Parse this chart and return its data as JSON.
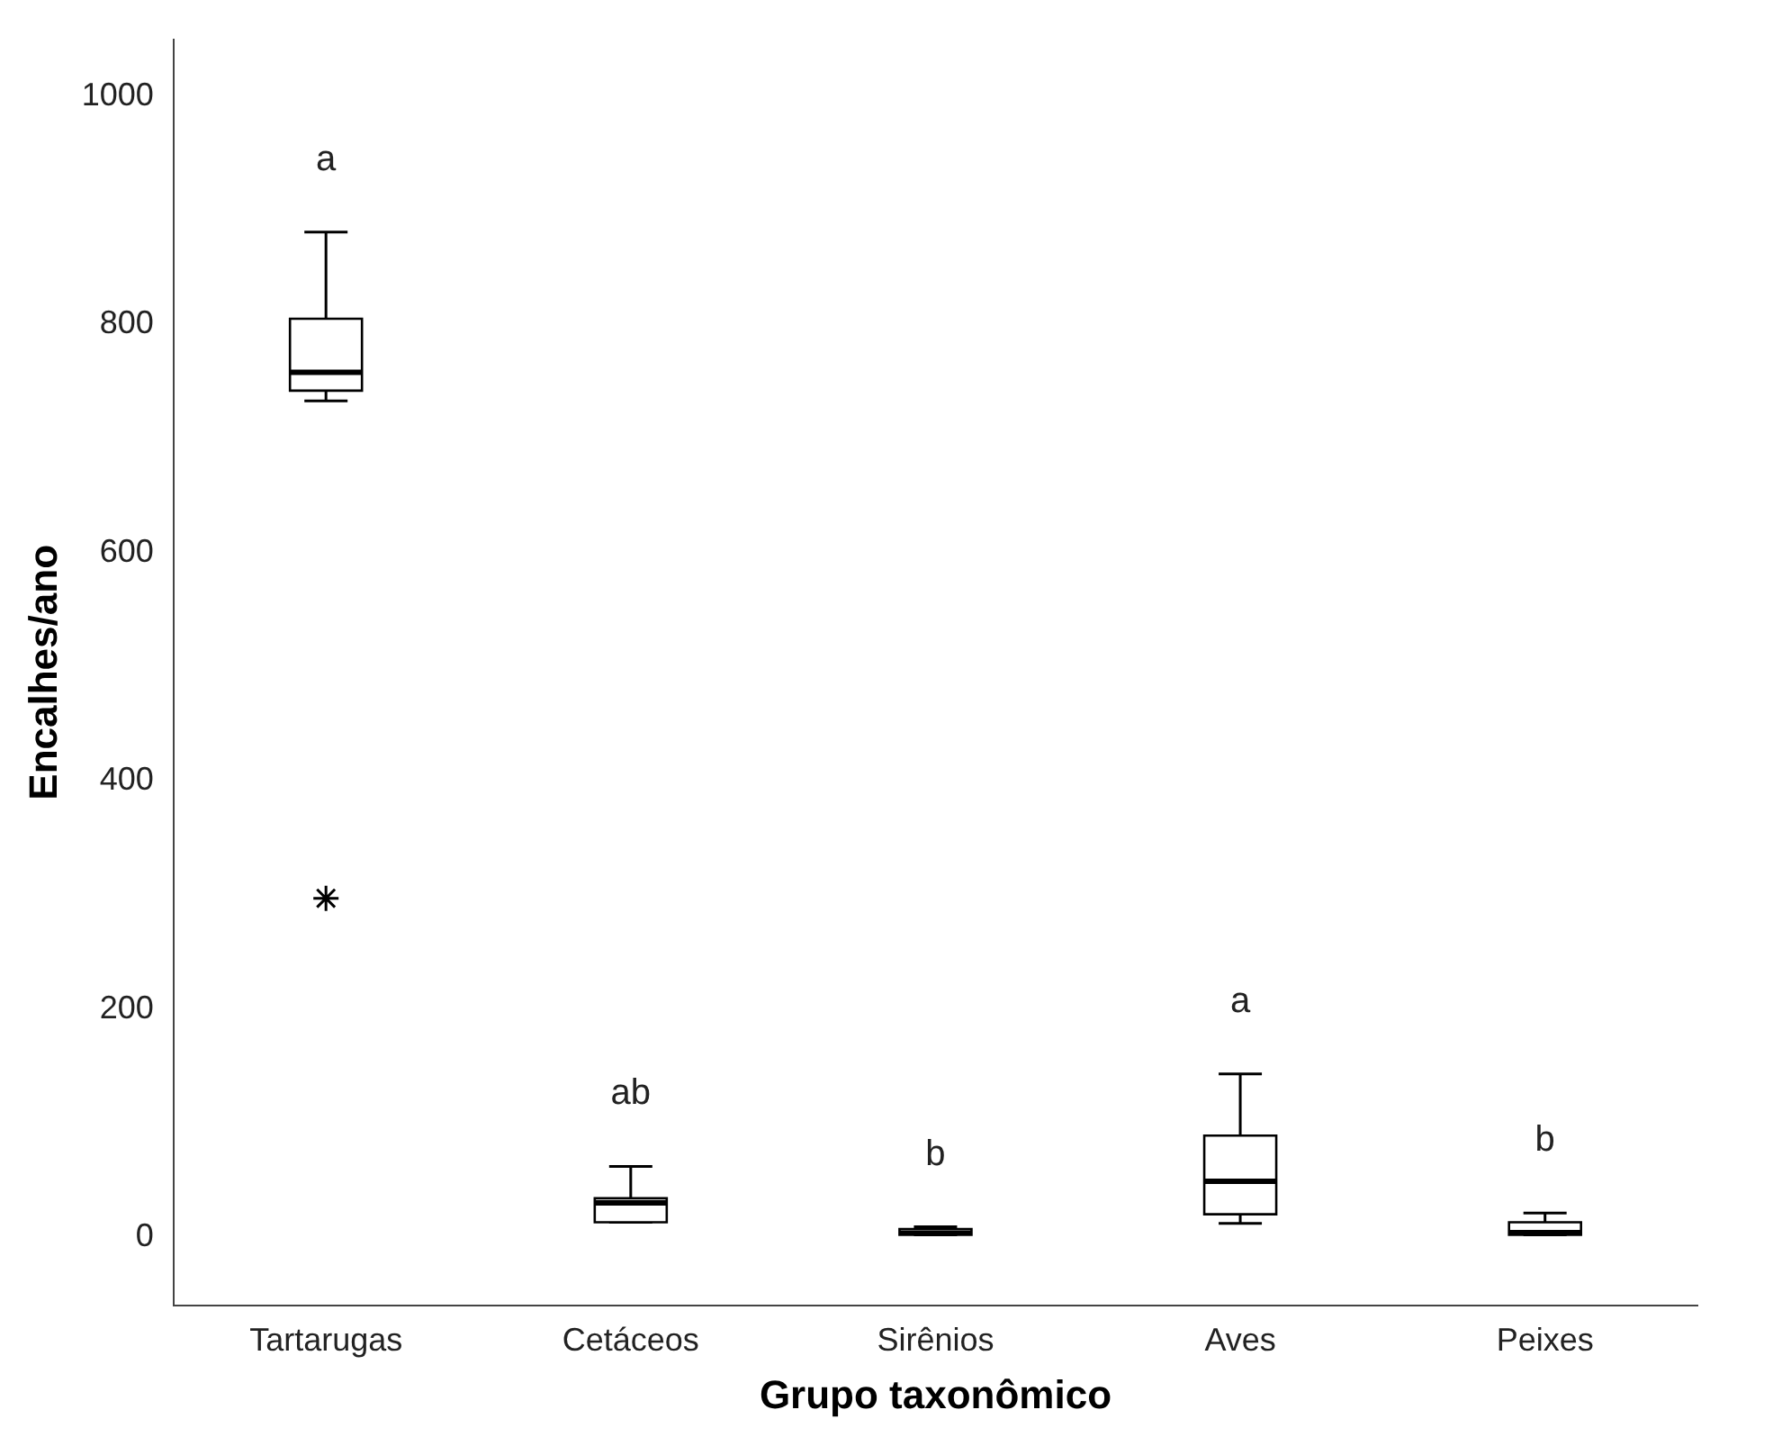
{
  "chart_data": {
    "type": "box",
    "xlabel": "Grupo taxonômico",
    "ylabel": "Encalhes/ano",
    "categories": [
      "Tartarugas",
      "Cetáceos",
      "Sirênios",
      "Aves",
      "Peixes"
    ],
    "boxes": [
      {
        "low": 733,
        "q1": 742,
        "median": 758,
        "q3": 805,
        "high": 881,
        "outliers": [
          297
        ]
      },
      {
        "low": 13,
        "q1": 13,
        "median": 30,
        "q3": 34,
        "high": 62
      },
      {
        "low": 2,
        "q1": 2,
        "median": 4,
        "q3": 7,
        "high": 9
      },
      {
        "low": 12,
        "q1": 20,
        "median": 49,
        "q3": 89,
        "high": 143
      },
      {
        "low": 2,
        "q1": 2,
        "median": 4,
        "q3": 13,
        "high": 21
      }
    ],
    "ylim": [
      -60,
      1050
    ],
    "yticks": [
      0,
      200,
      400,
      600,
      800,
      1000
    ],
    "grid": false,
    "legend": false,
    "marker": "star",
    "annotations": [
      "a",
      "ab",
      "b",
      "a",
      "b"
    ]
  }
}
